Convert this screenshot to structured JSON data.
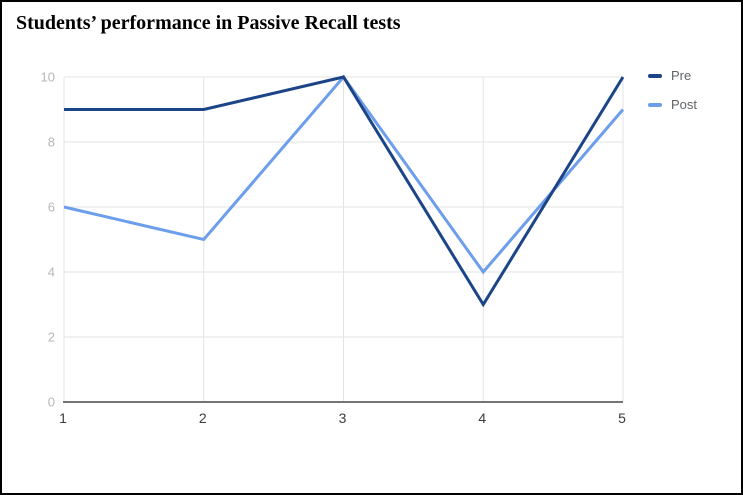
{
  "chart_data": {
    "type": "line",
    "title": "Students’ performance in Passive Recall tests",
    "x": [
      1,
      2,
      3,
      4,
      5
    ],
    "series": [
      {
        "name": "Pre",
        "color": "#1c4587",
        "values": [
          9,
          9,
          10,
          3,
          10
        ]
      },
      {
        "name": "Post",
        "color": "#6d9eeb",
        "values": [
          6,
          5,
          10,
          4,
          9
        ]
      }
    ],
    "xlabel": "",
    "ylabel": "",
    "xlim": [
      1,
      5
    ],
    "ylim": [
      0,
      10
    ],
    "x_ticks": [
      1,
      2,
      3,
      4,
      5
    ],
    "y_ticks": [
      0,
      2,
      4,
      6,
      8,
      10
    ],
    "grid": true,
    "legend_position": "right",
    "colors": {
      "background": "#ffffff",
      "border": "#000000",
      "grid": "#e3e3e3",
      "axis_line": "#757575",
      "y_tick_label": "#b7b7b7",
      "x_tick_label": "#3c3c3c",
      "legend_text": "#5f6368"
    }
  }
}
